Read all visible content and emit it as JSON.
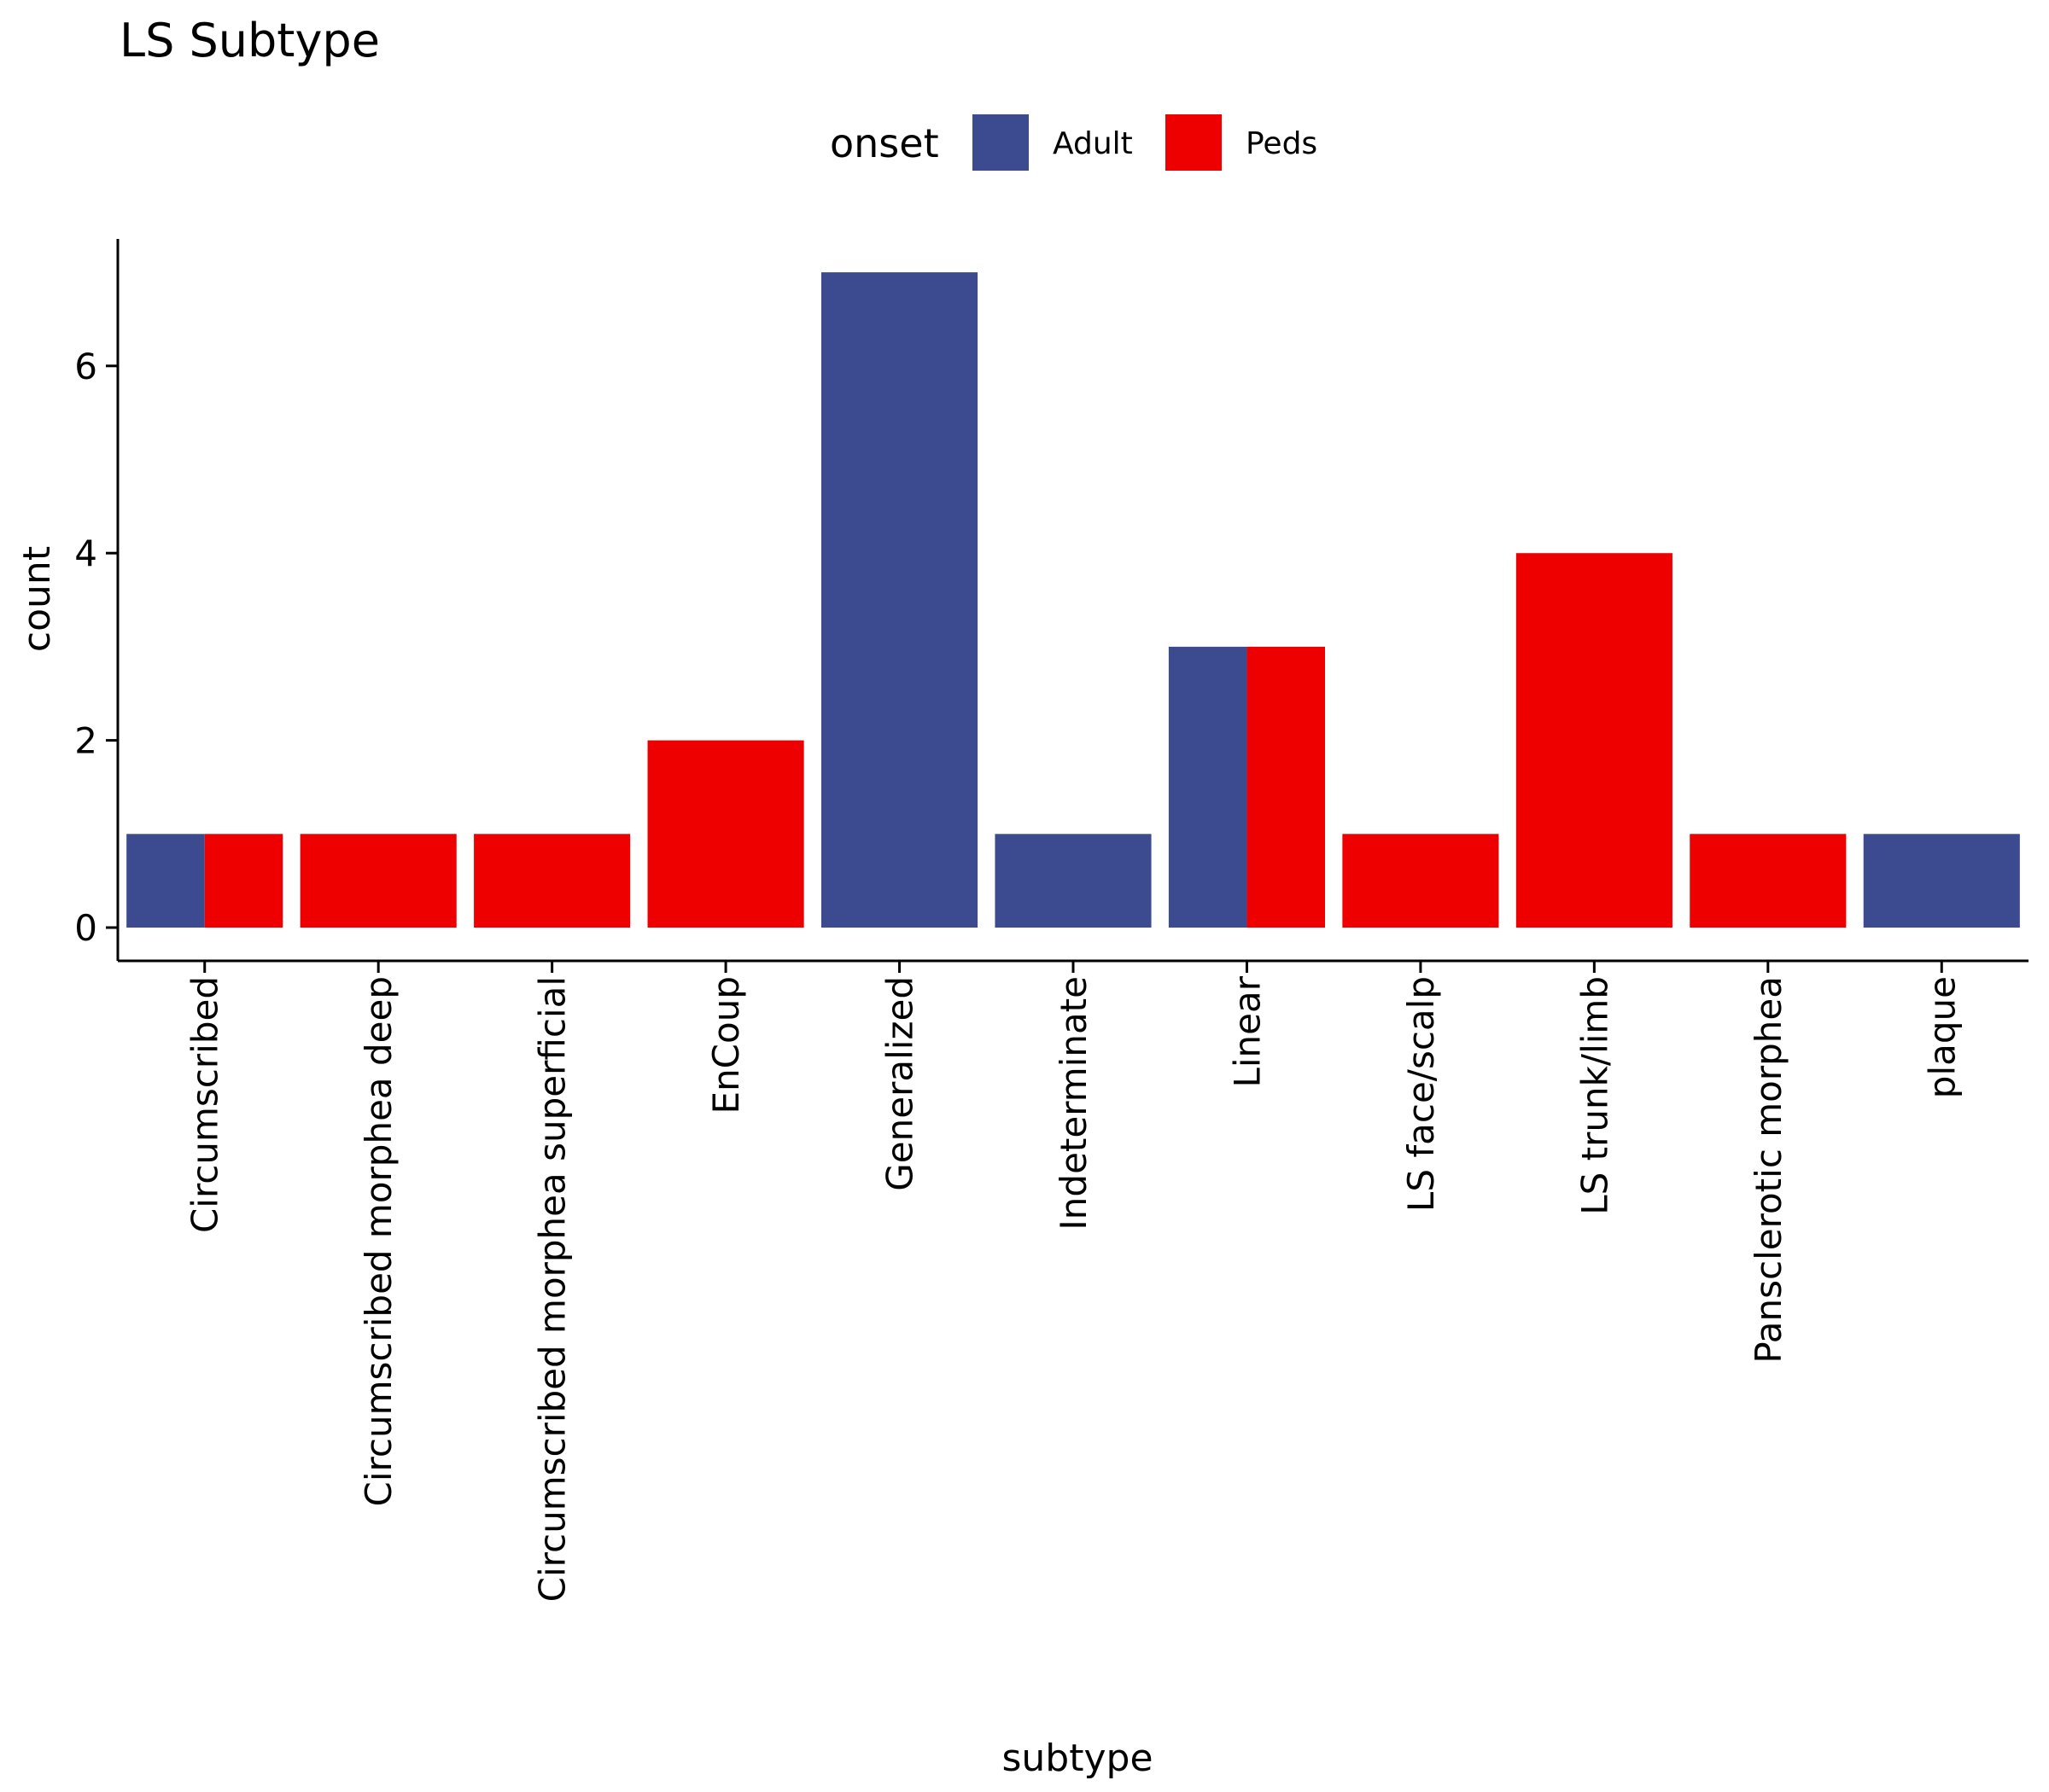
{
  "chart_data": {
    "type": "bar",
    "title": "LS Subtype",
    "xlabel": "subtype",
    "ylabel": "count",
    "ylim": [
      0,
      7.35
    ],
    "yticks": [
      0,
      2,
      4,
      6
    ],
    "grid": false,
    "legend": {
      "title": "onset",
      "placement": "top"
    },
    "categories": [
      "Circumscribed",
      "Circumscribed morphea deep",
      "Circumscribed morphea superficial",
      "EnCoup",
      "Generalized",
      "Indeterminate",
      "Linear",
      "LS face/scalp",
      "LS trunk/limb",
      "Pansclerotic morphea",
      "plaque"
    ],
    "series": [
      {
        "name": "Adult",
        "color": "#3c4a8f",
        "values": [
          1,
          0,
          0,
          0,
          7,
          1,
          3,
          0,
          0,
          0,
          1
        ]
      },
      {
        "name": "Peds",
        "color": "#ee0000",
        "values": [
          1,
          1,
          1,
          2,
          0,
          0,
          3,
          1,
          4,
          1,
          0
        ]
      }
    ]
  }
}
